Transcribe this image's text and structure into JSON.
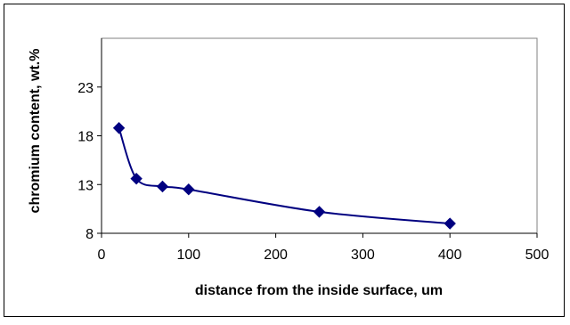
{
  "chart_data": {
    "type": "line",
    "title": "",
    "xlabel": "distance from the inside surface, um",
    "ylabel": "chromium content, wt.%",
    "xlim": [
      0,
      500
    ],
    "ylim": [
      8,
      28
    ],
    "xticks": [
      0,
      100,
      200,
      300,
      400,
      500
    ],
    "yticks": [
      8,
      13,
      18,
      23
    ],
    "grid": false,
    "legend": "none",
    "series": [
      {
        "x": [
          20,
          40,
          70,
          100,
          250,
          400
        ],
        "y": [
          18.8,
          13.6,
          12.8,
          12.5,
          10.2,
          9.0
        ]
      }
    ],
    "colors": {
      "series": "#000080",
      "axis": "#000000",
      "plot_background": "#ffffff"
    }
  }
}
